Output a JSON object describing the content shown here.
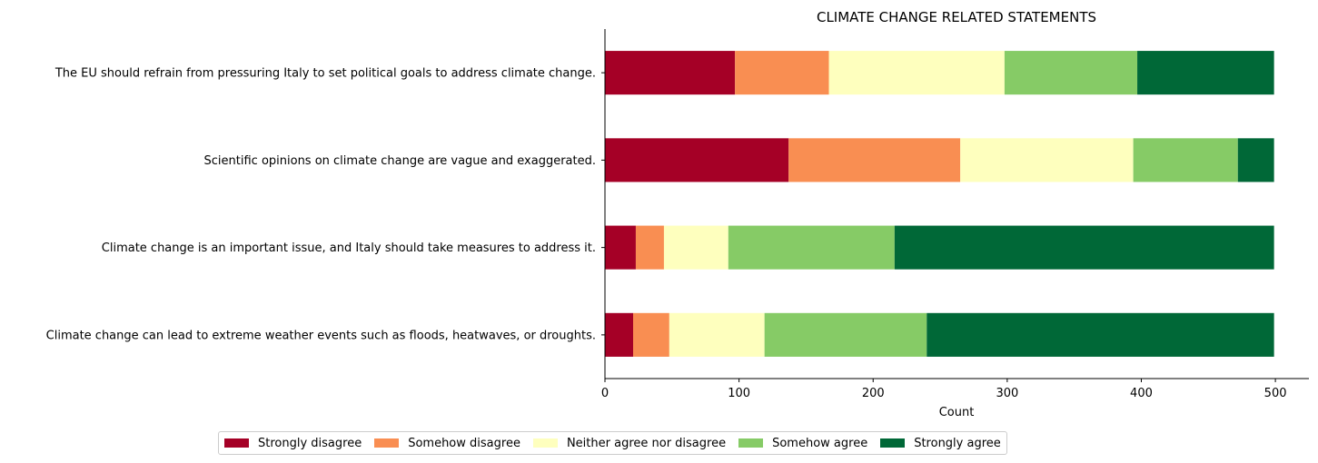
{
  "chart_data": {
    "type": "bar",
    "orientation": "horizontal",
    "stacked": true,
    "title": "CLIMATE CHANGE RELATED STATEMENTS",
    "xlabel": "Count",
    "ylabel": "",
    "xlim": [
      0,
      525
    ],
    "xticks": [
      0,
      100,
      200,
      300,
      400,
      500
    ],
    "grid": false,
    "legend_position": "bottom-center",
    "categories": [
      "The EU should refrain from pressuring Italy to set political goals to address climate change.",
      "Scientific opinions on climate change are vague and exaggerated.",
      "Climate change is an important issue, and Italy should take measures to address it.",
      "Climate change can lead to extreme weather events such as floods, heatwaves, or droughts."
    ],
    "series": [
      {
        "name": "Strongly disagree",
        "color": "#a50026",
        "values": [
          97,
          137,
          23,
          21
        ]
      },
      {
        "name": "Somehow disagree",
        "color": "#f98e52",
        "values": [
          70,
          128,
          21,
          27
        ]
      },
      {
        "name": "Neither agree nor disagree",
        "color": "#feffbe",
        "values": [
          131,
          129,
          48,
          71
        ]
      },
      {
        "name": "Somehow agree",
        "color": "#86cb66",
        "values": [
          99,
          78,
          124,
          121
        ]
      },
      {
        "name": "Strongly agree",
        "color": "#006837",
        "values": [
          102,
          27,
          283,
          259
        ]
      }
    ]
  }
}
